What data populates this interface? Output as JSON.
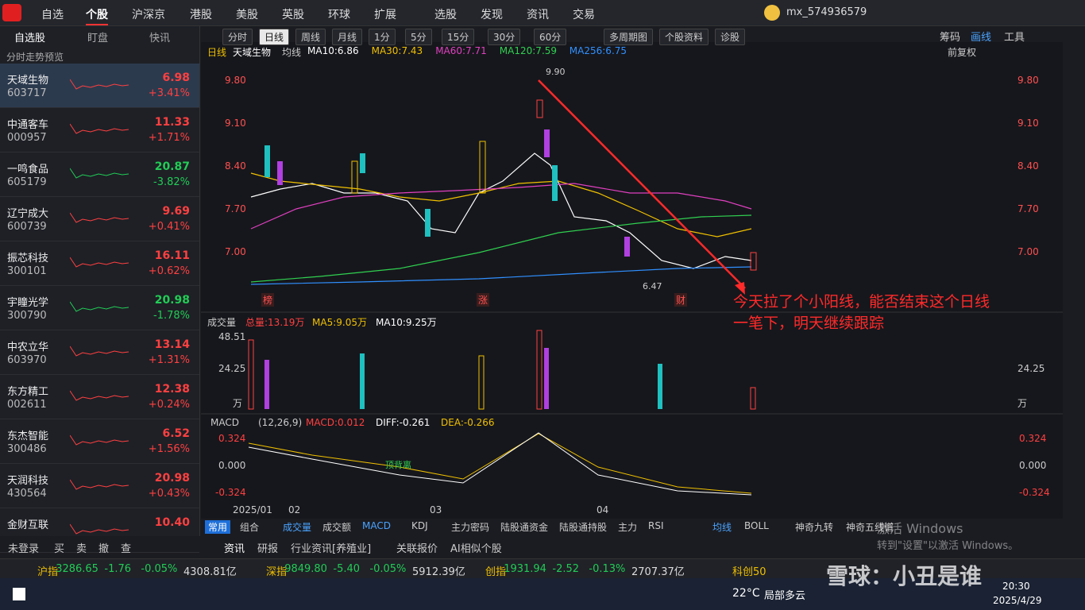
{
  "nav": {
    "tabs": [
      "自选",
      "个股",
      "沪深京",
      "港股",
      "美股",
      "英股",
      "环球",
      "扩展",
      "选股",
      "发现",
      "资讯",
      "交易"
    ],
    "user": "mx_574936579"
  },
  "sidebar": {
    "tabs": [
      "自选股",
      "盯盘",
      "快讯"
    ],
    "header": "分时走势预览",
    "stocks": [
      {
        "name": "天域生物",
        "code": "603717",
        "price": "6.98",
        "change": "+3.41%",
        "color": "#ff4040"
      },
      {
        "name": "中通客车",
        "code": "000957",
        "price": "11.33",
        "change": "+1.71%",
        "color": "#ff4040"
      },
      {
        "name": "一鸣食品",
        "code": "605179",
        "price": "20.87",
        "change": "-3.82%",
        "color": "#22cc55"
      },
      {
        "name": "辽宁成大",
        "code": "600739",
        "price": "9.69",
        "change": "+0.41%",
        "color": "#ff4040"
      },
      {
        "name": "振芯科技",
        "code": "300101",
        "price": "16.11",
        "change": "+0.62%",
        "color": "#ff4040"
      },
      {
        "name": "宇瞳光学",
        "code": "300790",
        "price": "20.98",
        "change": "-1.78%",
        "color": "#22cc55"
      },
      {
        "name": "中农立华",
        "code": "603970",
        "price": "13.14",
        "change": "+1.31%",
        "color": "#ff4040"
      },
      {
        "name": "东方精工",
        "code": "002611",
        "price": "12.38",
        "change": "+0.24%",
        "color": "#ff4040"
      },
      {
        "name": "东杰智能",
        "code": "300486",
        "price": "6.52",
        "change": "+1.56%",
        "color": "#ff4040"
      },
      {
        "name": "天润科技",
        "code": "430564",
        "price": "20.98",
        "change": "+0.43%",
        "color": "#ff4040"
      },
      {
        "name": "金财互联",
        "code": "",
        "price": "10.40",
        "change": "",
        "color": "#ff4040"
      }
    ]
  },
  "toolbar": {
    "buttons": [
      "分时",
      "日线",
      "周线",
      "月线",
      "1分",
      "5分",
      "15分",
      "30分",
      "60分",
      "多周期图",
      "个股资料",
      "诊股"
    ],
    "right": [
      "筹码",
      "画线",
      "工具"
    ]
  },
  "chart": {
    "period": "日线",
    "name": "天域生物",
    "ma_label": "均线",
    "ma": [
      {
        "text": "MA10:6.86",
        "color": "#ffffff"
      },
      {
        "text": "MA30:7.43",
        "color": "#f0c000"
      },
      {
        "text": "MA60:7.71",
        "color": "#e040c0"
      },
      {
        "text": "MA120:7.59",
        "color": "#30d050"
      },
      {
        "text": "MA256:6.75",
        "color": "#3090ff"
      }
    ],
    "adjust": "前复权",
    "price_ticks": [
      "9.80",
      "9.10",
      "8.40",
      "7.70",
      "7.00"
    ],
    "high": "9.90",
    "low": "6.47",
    "markers": [
      "榜",
      "涨",
      "财"
    ],
    "annotation": [
      "今天拉了个小阳线，能否结束这个日线",
      "一笔下，明天继续跟踪"
    ]
  },
  "volume": {
    "title": "成交量",
    "total": "总量:13.19万",
    "ma5": "MA5:9.05万",
    "ma10": "MA10:9.25万",
    "ticks": [
      "48.51",
      "24.25",
      "万"
    ]
  },
  "macd": {
    "title": "MACD",
    "params": "(12,26,9)",
    "macd": "MACD:0.012",
    "diff": "DIFF:-0.261",
    "dea": "DEA:-0.266",
    "ticks": [
      "0.324",
      "0.000",
      "-0.324"
    ],
    "note": "顶背离"
  },
  "xaxis": [
    "2025/01",
    "02",
    "03",
    "04"
  ],
  "indicators": {
    "left": [
      "常用",
      "组合"
    ],
    "tabs": [
      "成交量",
      "成交额",
      "MACD",
      "KDJ",
      "主力密码",
      "陆股通资金",
      "陆股通持股",
      "主力",
      "RSI"
    ],
    "right": [
      "均线",
      "BOLL",
      "神奇九转",
      "神奇五线谱"
    ]
  },
  "bottom": {
    "trade": [
      "未登录",
      "买",
      "卖",
      "撤",
      "查"
    ],
    "tabs": [
      "资讯",
      "研报",
      "行业资讯[养殖业]",
      "关联报价",
      "AI相似个股"
    ]
  },
  "indices": [
    {
      "name": "沪指",
      "price": "3286.65",
      "change": "-1.76",
      "pct": "-0.05%",
      "amount": "4308.81亿"
    },
    {
      "name": "深指",
      "price": "9849.80",
      "change": "-5.40",
      "pct": "-0.05%",
      "amount": "5912.39亿"
    },
    {
      "name": "创指",
      "price": "1931.94",
      "change": "-2.52",
      "pct": "-0.13%",
      "amount": "2707.37亿"
    },
    {
      "name": "科创50"
    }
  ],
  "taskbar": {
    "temp": "22°C",
    "weather": "局部多云",
    "time": "20:30",
    "date": "2025/4/29"
  },
  "watermark": {
    "line1": "激活 Windows",
    "line2": "转到\"设置\"以激活 Windows。",
    "credit": "雪球：小丑是谁"
  }
}
